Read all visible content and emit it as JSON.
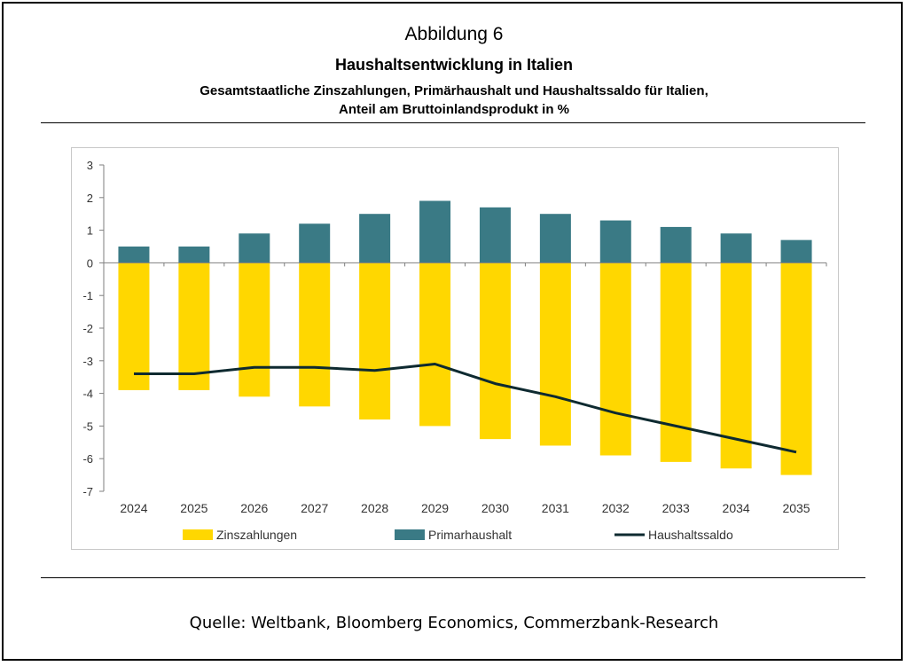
{
  "figure": {
    "caption": "Abbildung 6",
    "title": "Haushaltsentwicklung in Italien",
    "subtitle_lines": [
      "Gesamtstaatliche Zinszahlungen, Primärhaushalt und Haushaltssaldo für Italien,",
      "Anteil am Bruttoinlandsprodukt in %"
    ],
    "source": "Quelle: Weltbank, Bloomberg Economics, Commerzbank-Research"
  },
  "colors": {
    "zins": "#FFD700",
    "primar": "#3A7A85",
    "saldo": "#0E2A30",
    "axis": "#7f7f7f",
    "label": "#333333"
  },
  "chart_data": {
    "type": "bar",
    "categories": [
      "2024",
      "2025",
      "2026",
      "2027",
      "2028",
      "2029",
      "2030",
      "2031",
      "2032",
      "2033",
      "2034",
      "2035"
    ],
    "series": [
      {
        "name": "Zinszahlungen",
        "type": "bar",
        "values": [
          -3.9,
          -3.9,
          -4.1,
          -4.4,
          -4.8,
          -5.0,
          -5.4,
          -5.6,
          -5.9,
          -6.1,
          -6.3,
          -6.5
        ]
      },
      {
        "name": "Primarhaushalt",
        "type": "bar",
        "values": [
          0.5,
          0.5,
          0.9,
          1.2,
          1.5,
          1.9,
          1.7,
          1.5,
          1.3,
          1.1,
          0.9,
          0.7
        ]
      },
      {
        "name": "Haushaltssaldo",
        "type": "line",
        "values": [
          -3.4,
          -3.4,
          -3.2,
          -3.2,
          -3.3,
          -3.1,
          -3.7,
          -4.1,
          -4.6,
          -5.0,
          -5.4,
          -5.8
        ]
      }
    ],
    "ylim": [
      -7,
      3
    ],
    "yticks": [
      "3",
      "2",
      "1",
      "0",
      "-1",
      "-2",
      "-3",
      "-4",
      "-5",
      "-6",
      "-7"
    ],
    "grid": false,
    "legend_position": "bottom"
  }
}
